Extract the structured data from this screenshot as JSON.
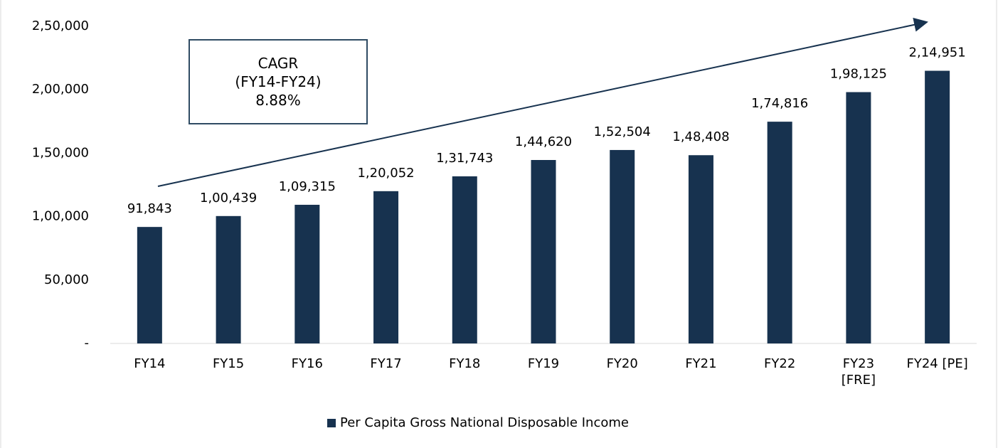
{
  "chart_data": {
    "type": "bar",
    "categories": [
      "FY14",
      "FY15",
      "FY16",
      "FY17",
      "FY18",
      "FY19",
      "FY20",
      "FY21",
      "FY22",
      "FY23\n[FRE]",
      "FY24 [PE]"
    ],
    "series": [
      {
        "name": "Per Capita Gross National Disposable Income",
        "color": "#17324f",
        "values": [
          91843,
          100439,
          109315,
          120052,
          131743,
          144620,
          152504,
          148408,
          174816,
          198125,
          214951
        ],
        "value_labels": [
          "91,843",
          "1,00,439",
          "1,09,315",
          "1,20,052",
          "1,31,743",
          "1,44,620",
          "1,52,504",
          "1,48,408",
          "1,74,816",
          "1,98,125",
          "2,14,951"
        ]
      }
    ],
    "ylim": [
      0,
      250000
    ],
    "yticks": [
      {
        "value": 0,
        "label": "-"
      },
      {
        "value": 50000,
        "label": "50,000"
      },
      {
        "value": 100000,
        "label": "1,00,000"
      },
      {
        "value": 150000,
        "label": "1,50,000"
      },
      {
        "value": 200000,
        "label": "2,00,000"
      },
      {
        "value": 250000,
        "label": "2,50,000"
      }
    ],
    "annotation": "CAGR\n(FY14-FY24)\n8.88%",
    "legend": "bottom"
  }
}
